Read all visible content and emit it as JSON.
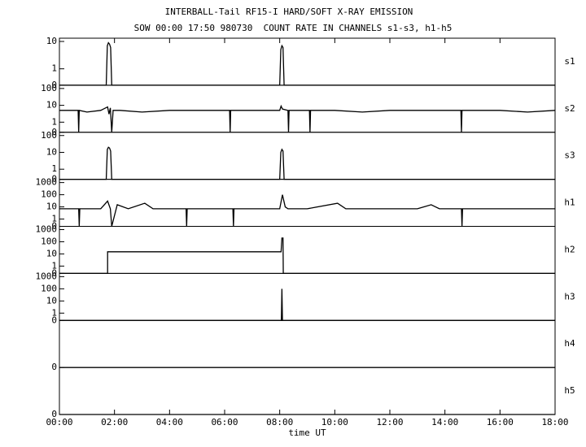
{
  "chart_data": [
    {
      "type": "line",
      "title": "INTERBALL-Tail RF15-I HARD/SOFT X-RAY EMISSION",
      "subtitle": "SOW 00:00 17:50 980730  COUNT RATE IN CHANNELS s1-s3, h1-h5",
      "label": "s1",
      "x": [
        0,
        1.7,
        1.74,
        1.78,
        1.82,
        1.86,
        1.9,
        8.0,
        8.04,
        8.08,
        8.12,
        8.16,
        18
      ],
      "values": [
        0,
        0,
        7,
        9,
        8,
        6,
        0,
        0,
        5,
        7,
        6,
        0,
        0
      ],
      "color": "#000000",
      "xlim": [
        0,
        18
      ],
      "ylim": [
        0,
        10
      ],
      "yticks": [
        0,
        1,
        10
      ]
    },
    {
      "type": "line",
      "label": "s2",
      "x": [
        0,
        0.5,
        0.68,
        0.7,
        0.72,
        1,
        1.5,
        1.75,
        1.8,
        1.85,
        1.9,
        1.95,
        2.2,
        3,
        4,
        5,
        6,
        6.18,
        6.2,
        6.22,
        7,
        8,
        8.05,
        8.1,
        8.3,
        8.32,
        8.34,
        9,
        9.08,
        9.1,
        9.12,
        10,
        11,
        12,
        13,
        14,
        14.58,
        14.6,
        14.62,
        15,
        16,
        17,
        18
      ],
      "values": [
        5,
        5,
        5,
        0,
        5,
        4,
        5,
        8,
        3,
        7,
        0,
        5,
        5,
        4,
        5,
        5,
        5,
        5,
        0,
        5,
        5,
        5,
        9,
        6,
        5,
        0,
        5,
        5,
        5,
        0,
        5,
        5,
        4,
        5,
        5,
        5,
        5,
        0,
        5,
        5,
        5,
        4,
        5
      ],
      "color": "#000000",
      "xlim": [
        0,
        18
      ],
      "ylim": [
        0,
        100
      ],
      "yticks": [
        0,
        1,
        10,
        100
      ]
    },
    {
      "type": "line",
      "label": "s3",
      "x": [
        0,
        1.7,
        1.74,
        1.78,
        1.82,
        1.86,
        1.9,
        8.0,
        8.04,
        8.08,
        8.12,
        8.16,
        18
      ],
      "values": [
        0,
        0,
        15,
        20,
        18,
        12,
        0,
        0,
        10,
        15,
        12,
        0,
        0
      ],
      "color": "#000000",
      "xlim": [
        0,
        18
      ],
      "ylim": [
        0,
        100
      ],
      "yticks": [
        0,
        1,
        10,
        100
      ]
    },
    {
      "type": "line",
      "label": "h1",
      "x": [
        0,
        0.7,
        0.72,
        0.74,
        1.5,
        1.75,
        1.85,
        1.9,
        2.1,
        2.5,
        3.1,
        3.4,
        4,
        4.6,
        4.62,
        4.64,
        5,
        6,
        6.3,
        6.32,
        6.34,
        7,
        8,
        8.1,
        8.2,
        8.3,
        9,
        10.1,
        10.4,
        11,
        12,
        13,
        13.5,
        13.8,
        14.6,
        14.62,
        14.64,
        15,
        16,
        17,
        18
      ],
      "values": [
        7,
        7,
        0,
        7,
        7,
        30,
        7,
        0,
        15,
        7,
        20,
        7,
        7,
        7,
        0,
        7,
        7,
        7,
        7,
        0,
        7,
        7,
        7,
        100,
        10,
        7,
        7,
        20,
        7,
        7,
        7,
        7,
        15,
        7,
        7,
        0,
        7,
        7,
        7,
        7,
        7
      ],
      "color": "#000000",
      "xlim": [
        0,
        18
      ],
      "ylim": [
        0,
        1000
      ],
      "yticks": [
        0,
        1,
        10,
        100,
        1000
      ]
    },
    {
      "type": "line",
      "label": "h2",
      "x": [
        0,
        1.75,
        1.75,
        8.05,
        8.08,
        8.12,
        8.13,
        18
      ],
      "values": [
        0,
        0,
        15,
        15,
        200,
        200,
        0,
        0
      ],
      "color": "#000000",
      "xlim": [
        0,
        18
      ],
      "ylim": [
        0,
        1000
      ],
      "yticks": [
        0,
        1,
        10,
        100,
        1000
      ]
    },
    {
      "type": "line",
      "label": "h3",
      "x": [
        0,
        8.06,
        8.08,
        8.1,
        18
      ],
      "values": [
        0,
        0,
        100,
        0,
        0
      ],
      "color": "#000000",
      "xlim": [
        0,
        18
      ],
      "ylim": [
        0,
        1000
      ],
      "yticks": [
        0,
        1,
        10,
        100,
        1000
      ]
    },
    {
      "type": "line",
      "label": "h4",
      "x": [
        0,
        18
      ],
      "values": [
        0,
        0
      ],
      "color": "#000000",
      "xlim": [
        0,
        18
      ],
      "ylim": [
        0,
        1
      ],
      "yticks": [
        0
      ]
    },
    {
      "type": "line",
      "label": "h5",
      "x": [
        0,
        18
      ],
      "values": [
        0,
        0
      ],
      "color": "#000000",
      "xlim": [
        0,
        18
      ],
      "ylim": [
        0,
        1
      ],
      "yticks": [
        0
      ],
      "xlabel": "time UT",
      "xticks": [
        {
          "value": 0,
          "label": "00:00"
        },
        {
          "value": 2,
          "label": "02:00"
        },
        {
          "value": 4,
          "label": "04:00"
        },
        {
          "value": 6,
          "label": "06:00"
        },
        {
          "value": 8,
          "label": "08:00"
        },
        {
          "value": 10,
          "label": "10:00"
        },
        {
          "value": 12,
          "label": "12:00"
        },
        {
          "value": 14,
          "label": "14:00"
        },
        {
          "value": 16,
          "label": "16:00"
        },
        {
          "value": 18,
          "label": "18:00"
        }
      ]
    }
  ]
}
